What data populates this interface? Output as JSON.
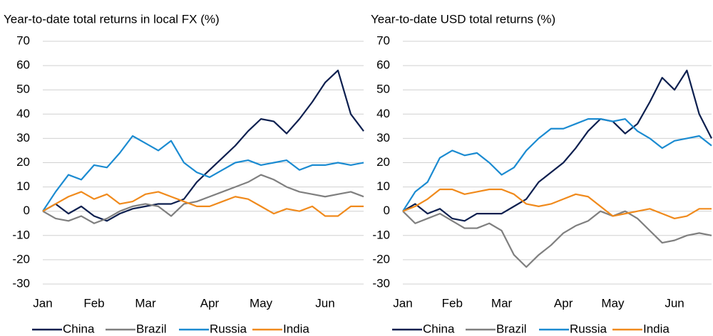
{
  "chart_data": [
    {
      "type": "line",
      "subtitle": "Year-to-date total returns in local FX (%)",
      "categories": [
        "Jan",
        null,
        null,
        null,
        "Feb",
        null,
        null,
        null,
        "Mar",
        null,
        null,
        null,
        null,
        "Apr",
        null,
        null,
        null,
        "May",
        null,
        null,
        null,
        null,
        "Jun",
        null,
        null,
        null
      ],
      "ylim": [
        -30,
        70
      ],
      "yticks": [
        -30,
        -20,
        -10,
        0,
        10,
        20,
        30,
        40,
        50,
        60,
        70
      ],
      "grid": true,
      "series": [
        {
          "name": "China",
          "color": "#0c1f4f",
          "values": [
            0,
            3,
            -1,
            2,
            -2,
            -4,
            -1,
            1,
            2,
            3,
            3,
            5,
            12,
            17,
            22,
            27,
            33,
            38,
            37,
            32,
            38,
            45,
            53,
            58,
            40,
            33
          ]
        },
        {
          "name": "Brazil",
          "color": "#7f7f7f",
          "values": [
            0,
            -3,
            -4,
            -2,
            -5,
            -3,
            0,
            2,
            3,
            2,
            -2,
            3,
            4,
            6,
            8,
            10,
            12,
            15,
            13,
            10,
            8,
            7,
            6,
            7,
            8,
            6
          ]
        },
        {
          "name": "Russia",
          "color": "#1b8bd1",
          "values": [
            0,
            8,
            15,
            13,
            19,
            18,
            24,
            31,
            28,
            25,
            29,
            20,
            16,
            14,
            17,
            20,
            21,
            19,
            20,
            21,
            17,
            19,
            19,
            20,
            19,
            20
          ]
        },
        {
          "name": "India",
          "color": "#f08a1c",
          "values": [
            0,
            3,
            6,
            8,
            5,
            7,
            3,
            4,
            7,
            8,
            6,
            4,
            2,
            2,
            4,
            6,
            5,
            2,
            -1,
            1,
            0,
            2,
            -2,
            -2,
            2,
            2
          ]
        }
      ]
    },
    {
      "type": "line",
      "subtitle": "Year-to-date USD total returns (%)",
      "categories": [
        "Jan",
        null,
        null,
        null,
        "Feb",
        null,
        null,
        null,
        "Mar",
        null,
        null,
        null,
        null,
        "Apr",
        null,
        null,
        null,
        "May",
        null,
        null,
        null,
        null,
        "Jun",
        null,
        null,
        null
      ],
      "ylim": [
        -30,
        70
      ],
      "yticks": [
        -30,
        -20,
        -10,
        0,
        10,
        20,
        30,
        40,
        50,
        60,
        70
      ],
      "grid": true,
      "series": [
        {
          "name": "China",
          "color": "#0c1f4f",
          "values": [
            0,
            3,
            -1,
            1,
            -3,
            -4,
            -1,
            -1,
            -1,
            2,
            5,
            12,
            16,
            20,
            26,
            33,
            38,
            37,
            32,
            36,
            45,
            55,
            50,
            58,
            40,
            30
          ]
        },
        {
          "name": "Brazil",
          "color": "#7f7f7f",
          "values": [
            0,
            -5,
            -3,
            -1,
            -4,
            -7,
            -7,
            -5,
            -8,
            -18,
            -23,
            -18,
            -14,
            -9,
            -6,
            -4,
            0,
            -2,
            0,
            -3,
            -8,
            -13,
            -12,
            -10,
            -9,
            -10
          ]
        },
        {
          "name": "Russia",
          "color": "#1b8bd1",
          "values": [
            0,
            8,
            12,
            22,
            25,
            23,
            24,
            20,
            15,
            18,
            25,
            30,
            34,
            34,
            36,
            38,
            38,
            37,
            38,
            33,
            30,
            26,
            29,
            30,
            31,
            27
          ]
        },
        {
          "name": "India",
          "color": "#f08a1c",
          "values": [
            0,
            2,
            5,
            9,
            9,
            7,
            8,
            9,
            9,
            7,
            3,
            2,
            3,
            5,
            7,
            6,
            2,
            -2,
            -1,
            0,
            1,
            -1,
            -3,
            -2,
            1,
            1
          ]
        }
      ]
    }
  ]
}
